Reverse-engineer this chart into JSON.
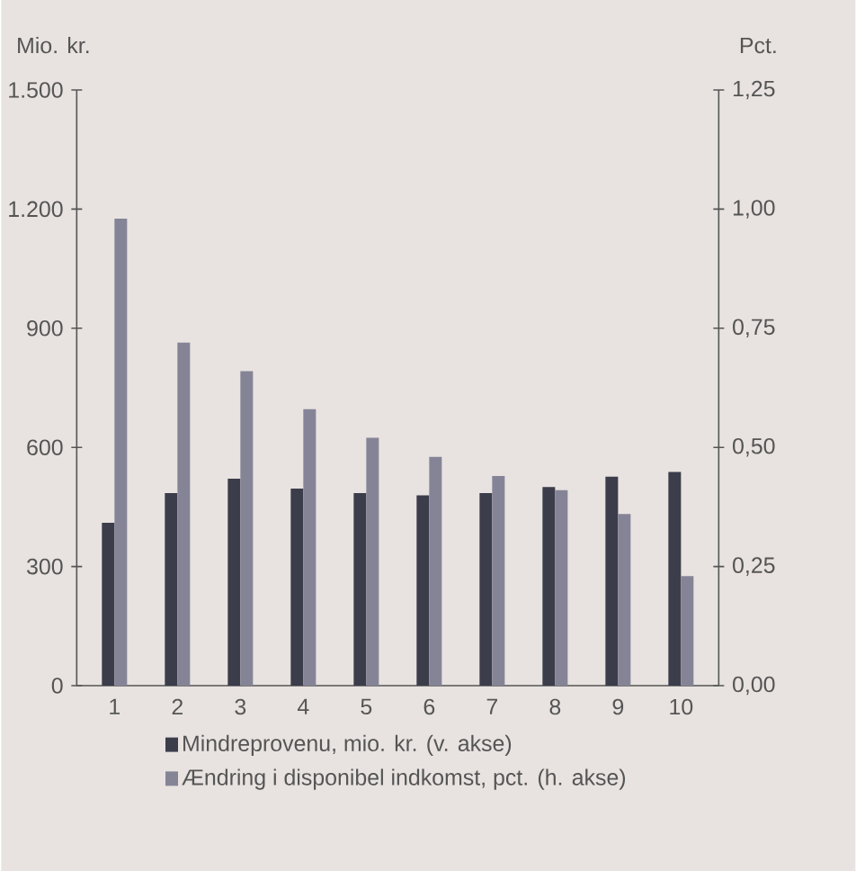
{
  "chart_data": {
    "type": "bar",
    "categories": [
      "1",
      "2",
      "3",
      "4",
      "5",
      "6",
      "7",
      "8",
      "9",
      "10"
    ],
    "series": [
      {
        "name": "Mindreprovenu, mio. kr. (v. akse)",
        "color": "#3c3d4b",
        "axis": "y",
        "values": [
          410,
          485,
          521,
          496,
          485,
          479,
          485,
          500,
          526,
          538
        ]
      },
      {
        "name": "Ændring i disponibel indkomst, pct. (h. akse)",
        "color": "#858497",
        "axis": "y2",
        "values": [
          0.98,
          0.72,
          0.66,
          0.58,
          0.52,
          0.48,
          0.44,
          0.41,
          0.36,
          0.23
        ]
      }
    ],
    "ylabel": "Mio. kr.",
    "y2label": "Pct.",
    "ylim": [
      0,
      1500
    ],
    "yticks": [
      0,
      300,
      600,
      900,
      {
        "value": 1200,
        "label": "1.200"
      },
      {
        "value": 1500,
        "label": "1.500"
      }
    ],
    "y2lim": [
      0,
      1.25
    ],
    "y2ticks": [
      {
        "value": 0,
        "label": "0,00"
      },
      {
        "value": 0.25,
        "label": "0,25"
      },
      {
        "value": 0.5,
        "label": "0,50"
      },
      {
        "value": 0.75,
        "label": "0,75"
      },
      {
        "value": 1.0,
        "label": "1,00"
      },
      {
        "value": 1.25,
        "label": "1,25"
      }
    ],
    "legend": "bottom"
  }
}
